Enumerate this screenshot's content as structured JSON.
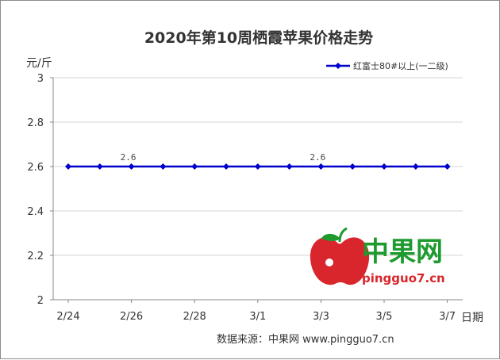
{
  "chart_data": {
    "type": "line",
    "title": "2020年第10周栖霞苹果价格走势",
    "ylabel": "元/斤",
    "xlabel": "日期",
    "ylim": [
      2,
      3
    ],
    "yticks": [
      "2",
      "2.2",
      "2.4",
      "2.6",
      "2.8",
      "3"
    ],
    "x": [
      "2/24",
      "2/25",
      "2/26",
      "2/27",
      "2/28",
      "2/29",
      "3/1",
      "3/2",
      "3/3",
      "3/4",
      "3/5",
      "3/6",
      "3/7"
    ],
    "xtick_labels": [
      "2/24",
      "2/26",
      "2/28",
      "3/1",
      "3/3",
      "3/5",
      "3/7"
    ],
    "series": [
      {
        "name": "红富士80#以上(一二级)",
        "values": [
          2.6,
          2.6,
          2.6,
          2.6,
          2.6,
          2.6,
          2.6,
          2.6,
          2.6,
          2.6,
          2.6,
          2.6,
          2.6
        ],
        "color": "#0000cc"
      }
    ],
    "data_labels": [
      {
        "index": 2,
        "text": "2.6"
      },
      {
        "index": 8,
        "text": "2.6"
      }
    ],
    "grid": true,
    "legend_position": "top-right"
  },
  "source": "数据来源：中果网 www.pingguo7.cn",
  "watermark": {
    "name": "中果网",
    "url": "pingguo7.cn",
    "icon": "apple-icon"
  }
}
